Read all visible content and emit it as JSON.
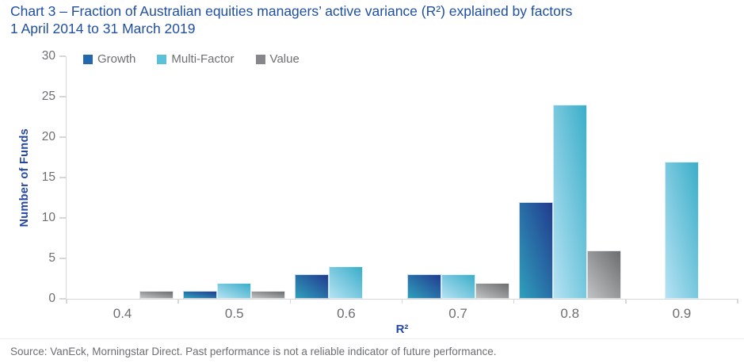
{
  "title": {
    "line1": "Chart 3 – Fraction of Australian equities managers’ active variance (R²) explained by factors",
    "line2": "1 April 2014 to 31 March 2019"
  },
  "footer": {
    "source": "Source: VanEck, Morningstar Direct. Past performance is not a reliable indicator of future performance."
  },
  "colors": {
    "title_blue": "#1F4FA0",
    "axis_label_blue": "#2547A6",
    "tick_text_gray": "#6D6E71",
    "axis_line_gray": "#D6D7D8",
    "background": "#FFFFFF"
  },
  "chart_data": {
    "type": "bar",
    "title": "Chart 3 – Fraction of Australian equities managers’ active variance (R²) explained by factors, 1 April 2014 to 31 March 2019",
    "categories": [
      "0.4",
      "0.5",
      "0.6",
      "0.7",
      "0.8",
      "0.9"
    ],
    "series": [
      {
        "name": "Growth",
        "values": [
          0,
          1,
          3,
          3,
          12,
          0
        ],
        "legend_color": "#2368AE",
        "gradient_top": "#223B90",
        "gradient_bottom": "#2FA0BC"
      },
      {
        "name": "Multi-Factor",
        "values": [
          0,
          2,
          4,
          3,
          24,
          17
        ],
        "legend_color": "#5BC0DA",
        "gradient_top": "#3BAEC9",
        "gradient_bottom": "#B5E2F3"
      },
      {
        "name": "Value",
        "values": [
          1,
          1,
          0,
          2,
          6,
          0
        ],
        "legend_color": "#85878A",
        "gradient_top": "#6B6D6F",
        "gradient_bottom": "#C0C2C4"
      }
    ],
    "xlabel": "R²",
    "ylabel": "Number of Funds",
    "ylim": [
      0,
      30
    ],
    "yticks": [
      0,
      5,
      10,
      15,
      20,
      25,
      30
    ],
    "legend_position": "top-left",
    "grid": false
  }
}
